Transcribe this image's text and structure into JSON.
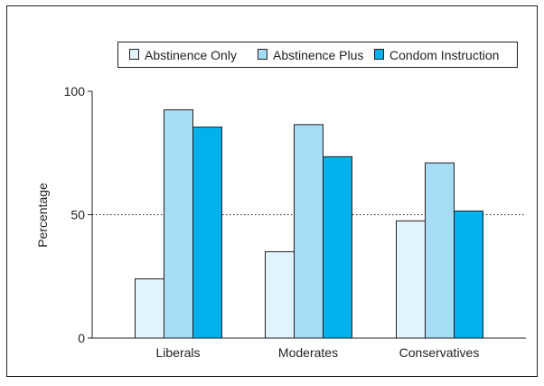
{
  "chart_data": {
    "type": "bar",
    "title": "",
    "xlabel": "",
    "ylabel": "Percentage",
    "ylim": [
      0,
      100
    ],
    "yticks": [
      0,
      50,
      100
    ],
    "reference_line": 50,
    "grid": false,
    "legend_position": "top",
    "categories": [
      "Liberals",
      "Moderates",
      "Conservatives"
    ],
    "series": [
      {
        "name": "Abstinence Only",
        "color": "#e1f3fc",
        "values": [
          24,
          35,
          47.5
        ]
      },
      {
        "name": "Abstinence Plus",
        "color": "#a6dcf5",
        "values": [
          92.5,
          86.5,
          71
        ]
      },
      {
        "name": "Condom Instruction",
        "color": "#00b1eb",
        "values": [
          85.5,
          73.5,
          51.5
        ]
      }
    ]
  }
}
